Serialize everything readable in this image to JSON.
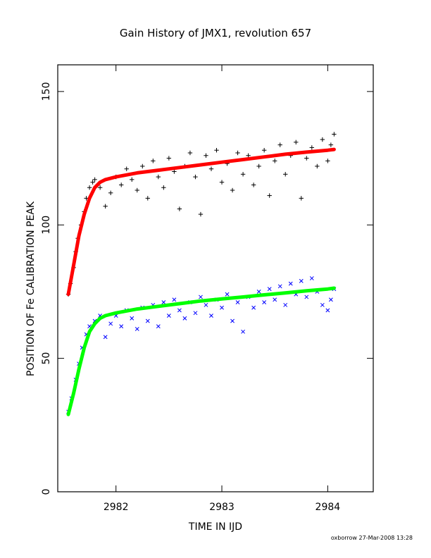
{
  "chart_data": {
    "type": "scatter",
    "title": "Gain History of JMX1, revolution 657",
    "xlabel": "TIME IN IJD",
    "ylabel": "POSITION OF Fe CALIBRATION PEAK",
    "xlim": [
      2981.45,
      2984.43
    ],
    "ylim": [
      0,
      160
    ],
    "xticks": [
      2982,
      2983,
      2984
    ],
    "yticks": [
      0,
      50,
      100,
      150
    ],
    "grid": false,
    "footer": "oxborrow 27-Mar-2008 13:28",
    "series": [
      {
        "marker": "plus",
        "color": "#000000",
        "points": [
          [
            2981.55,
            74
          ],
          [
            2981.57,
            78
          ],
          [
            2981.6,
            84
          ],
          [
            2981.62,
            90
          ],
          [
            2981.64,
            95
          ],
          [
            2981.67,
            100
          ],
          [
            2981.7,
            105
          ],
          [
            2981.72,
            110
          ],
          [
            2981.75,
            114
          ],
          [
            2981.78,
            116
          ],
          [
            2981.8,
            117
          ],
          [
            2981.85,
            114
          ],
          [
            2981.9,
            107
          ],
          [
            2981.95,
            112
          ],
          [
            2982.0,
            118
          ],
          [
            2982.05,
            115
          ],
          [
            2982.1,
            121
          ],
          [
            2982.15,
            117
          ],
          [
            2982.2,
            113
          ],
          [
            2982.25,
            122
          ],
          [
            2982.3,
            110
          ],
          [
            2982.35,
            124
          ],
          [
            2982.4,
            118
          ],
          [
            2982.45,
            114
          ],
          [
            2982.5,
            125
          ],
          [
            2982.55,
            120
          ],
          [
            2982.6,
            106
          ],
          [
            2982.65,
            122
          ],
          [
            2982.7,
            127
          ],
          [
            2982.75,
            118
          ],
          [
            2982.8,
            104
          ],
          [
            2982.85,
            126
          ],
          [
            2982.9,
            121
          ],
          [
            2982.95,
            128
          ],
          [
            2983.0,
            116
          ],
          [
            2983.05,
            123
          ],
          [
            2983.1,
            113
          ],
          [
            2983.15,
            127
          ],
          [
            2983.2,
            119
          ],
          [
            2983.25,
            126
          ],
          [
            2983.3,
            115
          ],
          [
            2983.35,
            122
          ],
          [
            2983.4,
            128
          ],
          [
            2983.45,
            111
          ],
          [
            2983.5,
            124
          ],
          [
            2983.55,
            130
          ],
          [
            2983.6,
            119
          ],
          [
            2983.65,
            126
          ],
          [
            2983.7,
            131
          ],
          [
            2983.75,
            110
          ],
          [
            2983.8,
            125
          ],
          [
            2983.85,
            129
          ],
          [
            2983.9,
            122
          ],
          [
            2983.95,
            132
          ],
          [
            2984.0,
            124
          ],
          [
            2984.03,
            130
          ],
          [
            2984.06,
            134
          ]
        ]
      },
      {
        "marker": "line",
        "color": "#ff0000",
        "points": [
          [
            2981.55,
            74
          ],
          [
            2981.6,
            85
          ],
          [
            2981.65,
            96
          ],
          [
            2981.7,
            104
          ],
          [
            2981.75,
            110
          ],
          [
            2981.8,
            114
          ],
          [
            2981.85,
            116
          ],
          [
            2981.9,
            117
          ],
          [
            2982.0,
            118
          ],
          [
            2982.2,
            119.5
          ],
          [
            2982.4,
            120.5
          ],
          [
            2982.6,
            121.5
          ],
          [
            2982.8,
            122.5
          ],
          [
            2983.0,
            123.5
          ],
          [
            2983.2,
            124.5
          ],
          [
            2983.4,
            125.5
          ],
          [
            2983.6,
            126.5
          ],
          [
            2983.8,
            127.3
          ],
          [
            2984.0,
            128
          ],
          [
            2984.06,
            128.3
          ]
        ]
      },
      {
        "marker": "x",
        "color": "#0000ff",
        "points": [
          [
            2981.55,
            30
          ],
          [
            2981.58,
            35
          ],
          [
            2981.62,
            42
          ],
          [
            2981.65,
            48
          ],
          [
            2981.68,
            54
          ],
          [
            2981.72,
            59
          ],
          [
            2981.75,
            62
          ],
          [
            2981.8,
            64
          ],
          [
            2981.85,
            66
          ],
          [
            2981.9,
            58
          ],
          [
            2981.95,
            63
          ],
          [
            2982.0,
            66
          ],
          [
            2982.05,
            62
          ],
          [
            2982.1,
            68
          ],
          [
            2982.15,
            65
          ],
          [
            2982.2,
            61
          ],
          [
            2982.25,
            69
          ],
          [
            2982.3,
            64
          ],
          [
            2982.35,
            70
          ],
          [
            2982.4,
            62
          ],
          [
            2982.45,
            71
          ],
          [
            2982.5,
            66
          ],
          [
            2982.55,
            72
          ],
          [
            2982.6,
            68
          ],
          [
            2982.65,
            65
          ],
          [
            2982.7,
            71
          ],
          [
            2982.75,
            67
          ],
          [
            2982.8,
            73
          ],
          [
            2982.85,
            70
          ],
          [
            2982.9,
            66
          ],
          [
            2982.95,
            72
          ],
          [
            2983.0,
            69
          ],
          [
            2983.05,
            74
          ],
          [
            2983.1,
            64
          ],
          [
            2983.15,
            71
          ],
          [
            2983.2,
            60
          ],
          [
            2983.25,
            73
          ],
          [
            2983.3,
            69
          ],
          [
            2983.35,
            75
          ],
          [
            2983.4,
            71
          ],
          [
            2983.45,
            76
          ],
          [
            2983.5,
            72
          ],
          [
            2983.55,
            77
          ],
          [
            2983.6,
            70
          ],
          [
            2983.65,
            78
          ],
          [
            2983.7,
            74
          ],
          [
            2983.75,
            79
          ],
          [
            2983.8,
            73
          ],
          [
            2983.85,
            80
          ],
          [
            2983.9,
            75
          ],
          [
            2983.95,
            70
          ],
          [
            2984.0,
            68
          ],
          [
            2984.03,
            72
          ],
          [
            2984.06,
            76
          ]
        ]
      },
      {
        "marker": "line",
        "color": "#00ff00",
        "points": [
          [
            2981.55,
            29
          ],
          [
            2981.6,
            37
          ],
          [
            2981.65,
            46
          ],
          [
            2981.7,
            54
          ],
          [
            2981.75,
            60
          ],
          [
            2981.8,
            63
          ],
          [
            2981.85,
            65
          ],
          [
            2981.9,
            66
          ],
          [
            2982.0,
            67
          ],
          [
            2982.2,
            68.5
          ],
          [
            2982.4,
            69.5
          ],
          [
            2982.6,
            70.5
          ],
          [
            2982.8,
            71.5
          ],
          [
            2983.0,
            72.3
          ],
          [
            2983.2,
            73
          ],
          [
            2983.4,
            73.8
          ],
          [
            2983.6,
            74.5
          ],
          [
            2983.8,
            75.3
          ],
          [
            2984.0,
            76
          ],
          [
            2984.06,
            76.3
          ]
        ]
      }
    ]
  }
}
